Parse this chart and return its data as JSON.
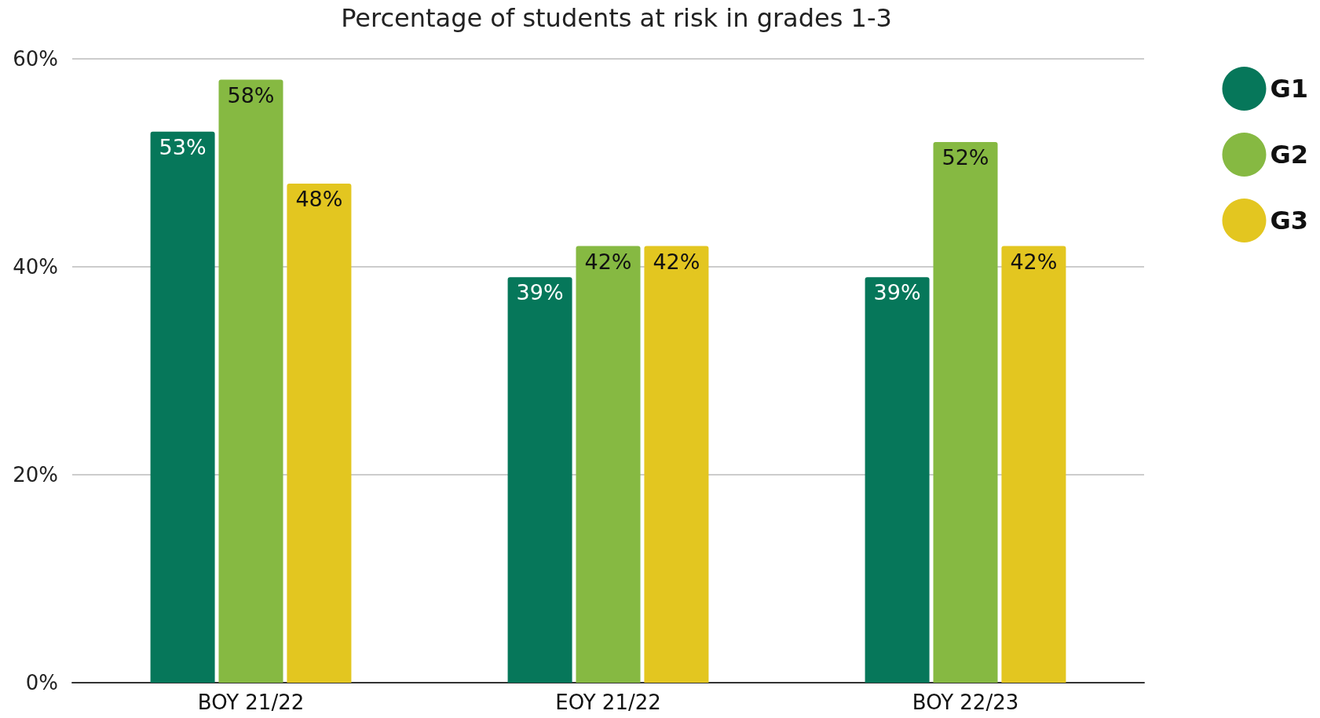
{
  "chart_data": {
    "type": "bar",
    "title": "Percentage of students at risk in grades 1-3",
    "categories": [
      "BOY 21/22",
      "EOY 21/22",
      "BOY 22/23"
    ],
    "series": [
      {
        "name": "G1",
        "color": "#06775a",
        "values": [
          53,
          39,
          39
        ],
        "value_labels": [
          "53%",
          "39%",
          "39%"
        ]
      },
      {
        "name": "G2",
        "color": "#86b942",
        "values": [
          58,
          42,
          52
        ],
        "value_labels": [
          "58%",
          "42%",
          "52%"
        ]
      },
      {
        "name": "G3",
        "color": "#e3c620",
        "values": [
          48,
          42,
          42
        ],
        "value_labels": [
          "48%",
          "42%",
          "42%"
        ]
      }
    ],
    "ylim": [
      0,
      60
    ],
    "yticks": [
      {
        "value": 0,
        "label": "0%"
      },
      {
        "value": 20,
        "label": "20%"
      },
      {
        "value": 40,
        "label": "40%"
      },
      {
        "value": 60,
        "label": "60%"
      }
    ],
    "grid": "y",
    "legend": "right"
  }
}
